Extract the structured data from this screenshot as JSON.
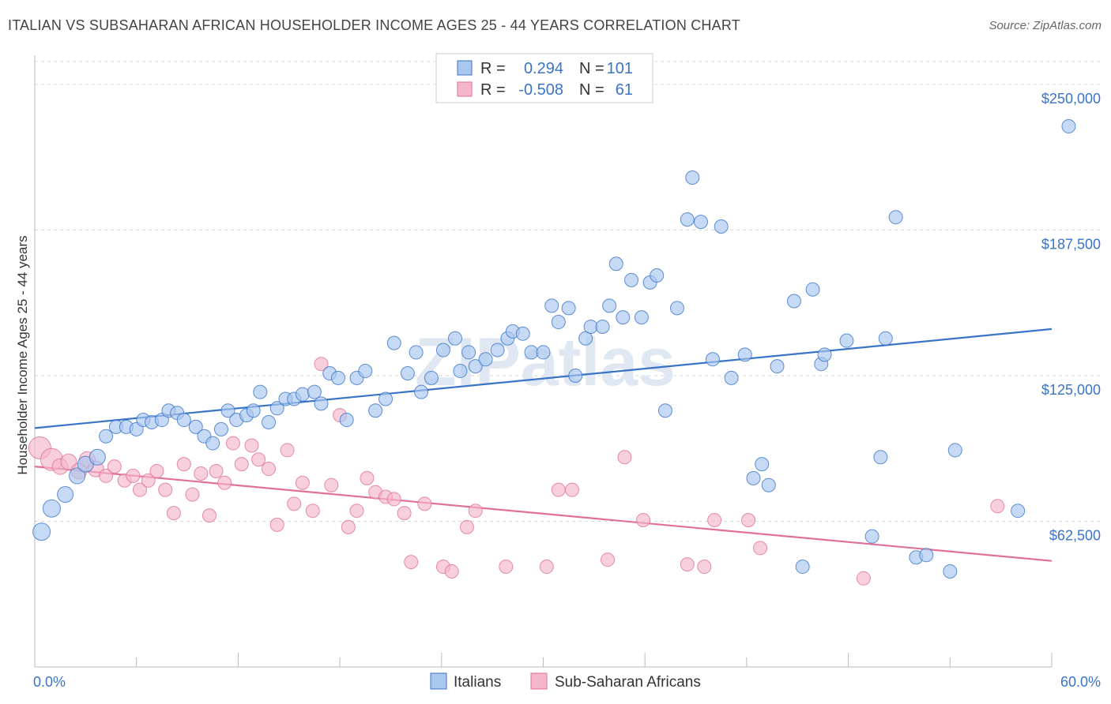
{
  "title": "ITALIAN VS SUBSAHARAN AFRICAN HOUSEHOLDER INCOME AGES 25 - 44 YEARS CORRELATION CHART",
  "source": "Source: ZipAtlas.com",
  "watermark": "ZIPatlas",
  "colors": {
    "blue": "#3a74c6",
    "blue_fill": "#a9c6ef",
    "pink": "#e0709a",
    "pink_fill": "#f4b6ca",
    "grid": "#d8d8d8"
  },
  "chart_data": {
    "type": "scatter",
    "xlabel": "",
    "ylabel": "Householder Income Ages 25 - 44 years",
    "xlim": [
      0,
      60
    ],
    "ylim": [
      0,
      262500
    ],
    "x_tick_labels": {
      "left": "0.0%",
      "right": "60.0%"
    },
    "y_ticks": [
      {
        "value": 62500,
        "label": "$62,500"
      },
      {
        "value": 125000,
        "label": "$125,000"
      },
      {
        "value": 187500,
        "label": "$187,500"
      },
      {
        "value": 250000,
        "label": "$250,000"
      }
    ],
    "legend": {
      "rows": [
        {
          "r_label": "R =",
          "r_value": "0.294",
          "n_label": "N =",
          "n_value": "101"
        },
        {
          "r_label": "R =",
          "r_value": "-0.508",
          "n_label": "N =",
          "n_value": "61"
        }
      ]
    },
    "series": [
      {
        "name": "Italians",
        "color": "#3a74c6",
        "trend": {
          "x": [
            0,
            60
          ],
          "y": [
            102500,
            145000
          ]
        },
        "points": [
          [
            0.4,
            58000
          ],
          [
            1.0,
            68000
          ],
          [
            1.8,
            74000
          ],
          [
            2.5,
            82000
          ],
          [
            3.0,
            87000
          ],
          [
            3.7,
            90000
          ],
          [
            4.2,
            99000
          ],
          [
            4.8,
            103000
          ],
          [
            5.4,
            103000
          ],
          [
            6.0,
            102000
          ],
          [
            6.4,
            106000
          ],
          [
            6.9,
            105000
          ],
          [
            7.5,
            106000
          ],
          [
            7.9,
            110000
          ],
          [
            8.4,
            109000
          ],
          [
            8.8,
            106000
          ],
          [
            9.5,
            103000
          ],
          [
            10.0,
            99000
          ],
          [
            10.5,
            96000
          ],
          [
            11.0,
            102000
          ],
          [
            11.4,
            110000
          ],
          [
            11.9,
            106000
          ],
          [
            12.5,
            108000
          ],
          [
            12.9,
            110000
          ],
          [
            13.3,
            118000
          ],
          [
            13.8,
            105000
          ],
          [
            14.3,
            111000
          ],
          [
            14.8,
            115000
          ],
          [
            15.3,
            115000
          ],
          [
            15.8,
            117000
          ],
          [
            16.5,
            118000
          ],
          [
            16.9,
            113000
          ],
          [
            17.4,
            126000
          ],
          [
            17.9,
            124000
          ],
          [
            18.4,
            106000
          ],
          [
            19.0,
            124000
          ],
          [
            19.5,
            127000
          ],
          [
            20.1,
            110000
          ],
          [
            20.7,
            115000
          ],
          [
            21.2,
            139000
          ],
          [
            22.0,
            126000
          ],
          [
            22.5,
            135000
          ],
          [
            22.8,
            118000
          ],
          [
            23.4,
            124000
          ],
          [
            24.1,
            136000
          ],
          [
            24.8,
            141000
          ],
          [
            25.1,
            127000
          ],
          [
            25.6,
            135000
          ],
          [
            26.0,
            129000
          ],
          [
            26.6,
            132000
          ],
          [
            27.3,
            136000
          ],
          [
            27.9,
            141000
          ],
          [
            28.2,
            144000
          ],
          [
            28.8,
            143000
          ],
          [
            29.3,
            135000
          ],
          [
            30.0,
            135000
          ],
          [
            30.5,
            155000
          ],
          [
            30.9,
            148000
          ],
          [
            31.5,
            154000
          ],
          [
            31.9,
            125000
          ],
          [
            32.5,
            141000
          ],
          [
            32.8,
            146000
          ],
          [
            33.5,
            146000
          ],
          [
            33.9,
            155000
          ],
          [
            34.3,
            173000
          ],
          [
            34.7,
            150000
          ],
          [
            35.2,
            166000
          ],
          [
            35.8,
            150000
          ],
          [
            36.3,
            165000
          ],
          [
            36.7,
            168000
          ],
          [
            37.2,
            110000
          ],
          [
            37.9,
            154000
          ],
          [
            38.5,
            192000
          ],
          [
            38.8,
            210000
          ],
          [
            39.3,
            191000
          ],
          [
            40.0,
            132000
          ],
          [
            40.5,
            189000
          ],
          [
            41.1,
            124000
          ],
          [
            41.9,
            134000
          ],
          [
            42.4,
            81000
          ],
          [
            42.9,
            87000
          ],
          [
            43.3,
            78000
          ],
          [
            43.8,
            129000
          ],
          [
            44.8,
            157000
          ],
          [
            45.3,
            43000
          ],
          [
            45.9,
            162000
          ],
          [
            46.4,
            130000
          ],
          [
            46.6,
            134000
          ],
          [
            47.9,
            140000
          ],
          [
            49.4,
            56000
          ],
          [
            49.9,
            90000
          ],
          [
            50.2,
            141000
          ],
          [
            50.8,
            193000
          ],
          [
            52.0,
            47000
          ],
          [
            52.6,
            48000
          ],
          [
            54.0,
            41000
          ],
          [
            54.3,
            93000
          ],
          [
            58.0,
            67000
          ],
          [
            61.0,
            232000
          ]
        ]
      },
      {
        "name": "Sub-Saharan Africans",
        "color": "#e0709a",
        "trend": {
          "x": [
            0,
            60
          ],
          "y": [
            86000,
            45500
          ]
        },
        "points": [
          [
            0.3,
            94000
          ],
          [
            1.0,
            89000
          ],
          [
            1.5,
            86000
          ],
          [
            2.0,
            88000
          ],
          [
            2.6,
            84000
          ],
          [
            3.1,
            89000
          ],
          [
            3.6,
            85000
          ],
          [
            4.2,
            82000
          ],
          [
            4.7,
            86000
          ],
          [
            5.3,
            80000
          ],
          [
            5.8,
            82000
          ],
          [
            6.2,
            76000
          ],
          [
            6.7,
            80000
          ],
          [
            7.2,
            84000
          ],
          [
            7.7,
            76000
          ],
          [
            8.2,
            66000
          ],
          [
            8.8,
            87000
          ],
          [
            9.3,
            74000
          ],
          [
            9.8,
            83000
          ],
          [
            10.3,
            65000
          ],
          [
            10.7,
            84000
          ],
          [
            11.2,
            79000
          ],
          [
            11.7,
            96000
          ],
          [
            12.2,
            87000
          ],
          [
            12.8,
            95000
          ],
          [
            13.2,
            89000
          ],
          [
            13.8,
            85000
          ],
          [
            14.3,
            61000
          ],
          [
            14.9,
            93000
          ],
          [
            15.3,
            70000
          ],
          [
            15.8,
            79000
          ],
          [
            16.4,
            67000
          ],
          [
            16.9,
            130000
          ],
          [
            17.5,
            78000
          ],
          [
            18.0,
            108000
          ],
          [
            18.5,
            60000
          ],
          [
            19.0,
            67000
          ],
          [
            19.6,
            81000
          ],
          [
            20.1,
            75000
          ],
          [
            20.7,
            73000
          ],
          [
            21.2,
            72000
          ],
          [
            21.8,
            66000
          ],
          [
            22.2,
            45000
          ],
          [
            23.0,
            70000
          ],
          [
            24.1,
            43000
          ],
          [
            24.6,
            41000
          ],
          [
            25.5,
            60000
          ],
          [
            26.0,
            67000
          ],
          [
            27.8,
            43000
          ],
          [
            30.2,
            43000
          ],
          [
            30.9,
            76000
          ],
          [
            31.7,
            76000
          ],
          [
            33.8,
            46000
          ],
          [
            34.8,
            90000
          ],
          [
            35.9,
            63000
          ],
          [
            38.5,
            44000
          ],
          [
            39.5,
            43000
          ],
          [
            40.1,
            63000
          ],
          [
            42.1,
            63000
          ],
          [
            42.8,
            51000
          ],
          [
            48.9,
            38000
          ],
          [
            56.8,
            69000
          ]
        ]
      }
    ]
  }
}
